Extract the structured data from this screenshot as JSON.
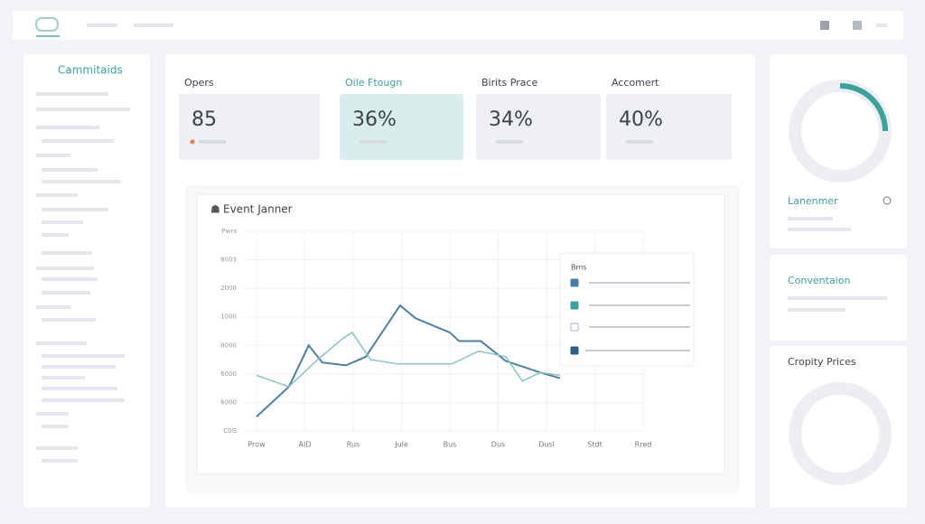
{
  "sidebar": {
    "title": "Cammitaids"
  },
  "kpis": [
    {
      "label": "Opers",
      "value": "85"
    },
    {
      "label": "Oile Ftougn",
      "value": "36%"
    },
    {
      "label": "Birits Prace",
      "value": "34%"
    },
    {
      "label": "Accomert",
      "value": "40%"
    }
  ],
  "chart": {
    "type": "line",
    "title": "Event Janner",
    "categories": [
      "Prow",
      "AID",
      "Rus",
      "Jule",
      "Bus",
      "Dus",
      "Dusl",
      "Stdt",
      "Rred"
    ],
    "xlim": [
      0,
      8
    ],
    "ylim": [
      0,
      7
    ],
    "yticks": [
      {
        "value": 0,
        "label": "C0G"
      },
      {
        "value": 1,
        "label": "6000"
      },
      {
        "value": 2,
        "label": "6000"
      },
      {
        "value": 3,
        "label": "8000"
      },
      {
        "value": 4,
        "label": "1000"
      },
      {
        "value": 5,
        "label": "2000"
      },
      {
        "value": 6,
        "label": "8003"
      },
      {
        "value": 7,
        "label": "Pwrs"
      }
    ],
    "grid": true,
    "series": [
      {
        "color": "#4a7fa8",
        "x": [
          0,
          0.67,
          1.08,
          1.36,
          1.85,
          2.26,
          2.97,
          3.29,
          4.0,
          4.19,
          4.64,
          5.16,
          5.87,
          6.28
        ],
        "values": [
          0.5,
          1.55,
          3.0,
          2.4,
          2.3,
          2.6,
          4.4,
          3.95,
          3.45,
          3.15,
          3.15,
          2.45,
          2.05,
          1.85
        ]
      },
      {
        "color": "#86c3c3",
        "x": [
          0,
          0.67,
          1.23,
          1.79,
          1.98,
          2.36,
          2.92,
          4.04,
          4.6,
          5.16,
          5.5,
          5.87,
          6.28
        ],
        "values": [
          1.95,
          1.55,
          2.45,
          3.25,
          3.45,
          2.5,
          2.35,
          2.35,
          2.8,
          2.6,
          1.75,
          2.05,
          1.95
        ]
      }
    ],
    "legend": {
      "title": "Bms"
    }
  },
  "side_cards": [
    {
      "title": "Lanenmer"
    },
    {
      "title": "Conventaion"
    },
    {
      "title": "Cropity Prices"
    }
  ]
}
